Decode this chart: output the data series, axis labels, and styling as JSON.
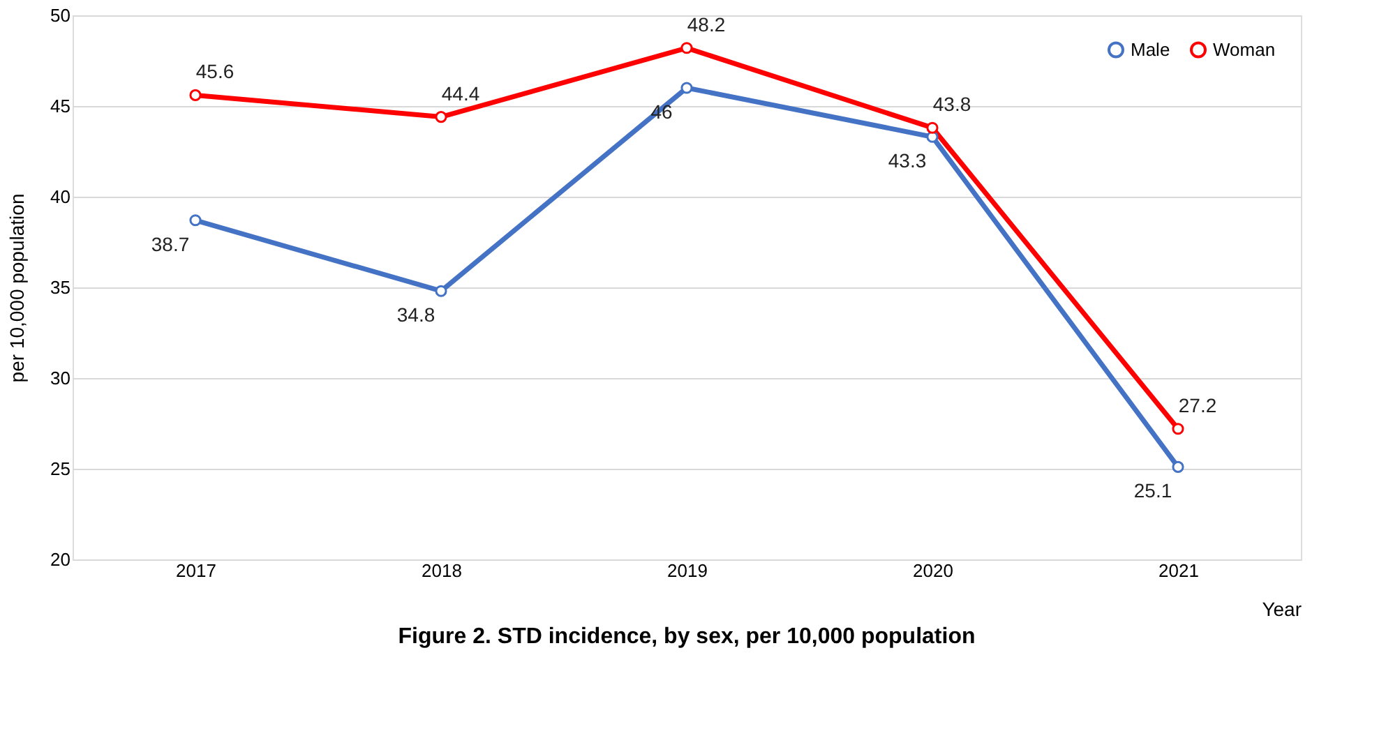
{
  "chart_data": {
    "type": "line",
    "title": "Figure 2. STD incidence, by sex, per 10,000 population",
    "xlabel": "Year",
    "ylabel": "per 10,000 population",
    "categories": [
      "2017",
      "2018",
      "2019",
      "2020",
      "2021"
    ],
    "series": [
      {
        "name": "Male",
        "color": "#4472c4",
        "values": [
          38.7,
          34.8,
          46,
          43.3,
          25.1
        ]
      },
      {
        "name": "Woman",
        "color": "#ff0000",
        "values": [
          45.6,
          44.4,
          48.2,
          43.8,
          27.2
        ]
      }
    ],
    "ylim": [
      20,
      50
    ],
    "yticks": [
      20,
      25,
      30,
      35,
      40,
      45,
      50
    ],
    "grid": "y",
    "legend": "top right",
    "marker": "circle",
    "line_style": "solid",
    "data_labels": true
  }
}
